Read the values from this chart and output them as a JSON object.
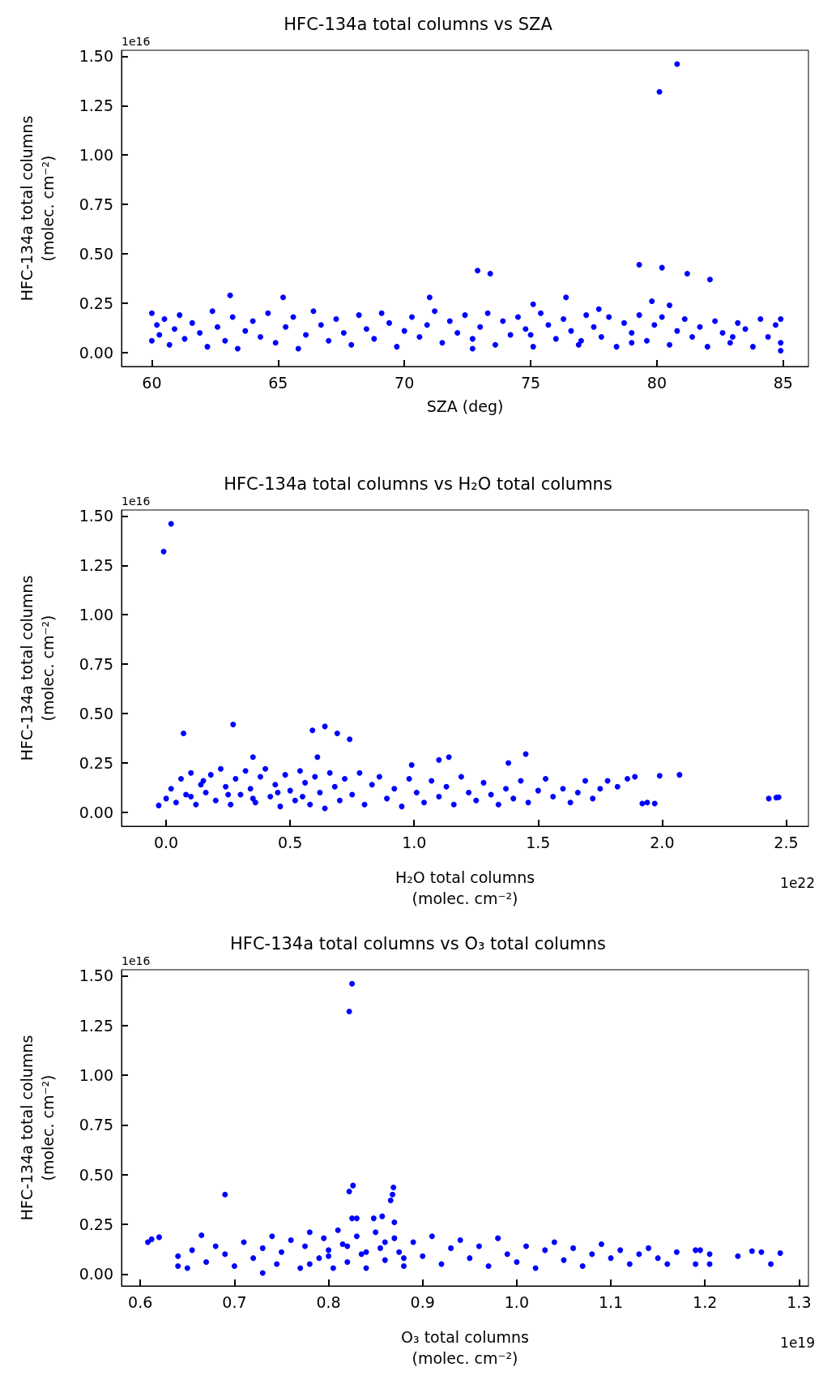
{
  "chart_data": [
    {
      "type": "scatter",
      "title": "HFC-134a total columns vs SZA",
      "xlabel": "SZA (deg)",
      "ylabel": "HFC-134a total columns\n(molec. cm⁻²)",
      "annotations": [
        "1e16"
      ],
      "marker": "circle",
      "grid": false,
      "xlim": [
        58.8,
        86.0
      ],
      "xticks": [
        60,
        65,
        70,
        75,
        80,
        85
      ],
      "ylim": [
        -0.07,
        1.53
      ],
      "yticks": [
        {
          "value": 0,
          "label": "0.00"
        },
        {
          "value": 0.25,
          "label": "0.25"
        },
        {
          "value": 0.5,
          "label": "0.50"
        },
        {
          "value": 0.75,
          "label": "0.75"
        },
        {
          "value": 1,
          "label": "1.00"
        },
        {
          "value": 1.25,
          "label": "1.25"
        },
        {
          "value": 1.5,
          "label": "1.50"
        }
      ],
      "series": [
        {
          "color": "#0000ff",
          "x": [
            80.8,
            80.1,
            72.9,
            73.4,
            79.3,
            80.2,
            81.2,
            82.1,
            63.1,
            65.2,
            71.0,
            76.4,
            75.1,
            79.8,
            80.5,
            77.7,
            84.9,
            72.7,
            60.0,
            60.0,
            60.2,
            60.3,
            60.5,
            60.7,
            60.9,
            61.1,
            61.3,
            61.6,
            61.9,
            62.2,
            62.4,
            62.6,
            62.9,
            63.2,
            63.4,
            63.7,
            64.0,
            64.3,
            64.6,
            64.9,
            65.3,
            65.6,
            65.8,
            66.1,
            66.4,
            66.7,
            67.0,
            67.3,
            67.6,
            67.9,
            68.2,
            68.5,
            68.8,
            69.1,
            69.4,
            69.7,
            70.0,
            70.3,
            70.6,
            70.9,
            71.2,
            71.5,
            71.8,
            72.1,
            72.4,
            72.7,
            73.0,
            73.3,
            73.6,
            73.9,
            74.2,
            74.5,
            74.8,
            75.1,
            75.4,
            75.7,
            76.0,
            76.3,
            76.6,
            76.9,
            77.2,
            77.5,
            77.8,
            78.1,
            78.4,
            78.7,
            79.0,
            79.3,
            79.6,
            79.9,
            80.2,
            80.5,
            80.8,
            81.1,
            81.4,
            81.7,
            82.0,
            82.3,
            82.6,
            82.9,
            83.2,
            83.5,
            83.8,
            84.1,
            84.4,
            84.7,
            84.9,
            84.9,
            83.0,
            77.0,
            75.0,
            79.0
          ],
          "values": [
            1.46,
            1.32,
            0.415,
            0.4,
            0.445,
            0.43,
            0.4,
            0.37,
            0.29,
            0.28,
            0.28,
            0.28,
            0.245,
            0.26,
            0.24,
            0.22,
            0.01,
            0.02,
            0.2,
            0.06,
            0.14,
            0.09,
            0.17,
            0.04,
            0.12,
            0.19,
            0.07,
            0.15,
            0.1,
            0.03,
            0.21,
            0.13,
            0.06,
            0.18,
            0.02,
            0.11,
            0.16,
            0.08,
            0.2,
            0.05,
            0.13,
            0.18,
            0.02,
            0.09,
            0.21,
            0.14,
            0.06,
            0.17,
            0.1,
            0.04,
            0.19,
            0.12,
            0.07,
            0.2,
            0.15,
            0.03,
            0.11,
            0.18,
            0.08,
            0.14,
            0.21,
            0.05,
            0.16,
            0.1,
            0.19,
            0.07,
            0.13,
            0.2,
            0.04,
            0.16,
            0.09,
            0.18,
            0.12,
            0.03,
            0.2,
            0.14,
            0.07,
            0.17,
            0.11,
            0.04,
            0.19,
            0.13,
            0.08,
            0.18,
            0.03,
            0.15,
            0.1,
            0.19,
            0.06,
            0.14,
            0.18,
            0.04,
            0.11,
            0.17,
            0.08,
            0.13,
            0.03,
            0.16,
            0.1,
            0.05,
            0.15,
            0.12,
            0.03,
            0.17,
            0.08,
            0.14,
            0.05,
            0.17,
            0.08,
            0.06,
            0.09,
            0.05
          ]
        }
      ]
    },
    {
      "type": "scatter",
      "title": "HFC-134a total columns vs H₂O total columns",
      "xlabel": "H₂O total columns\n(molec. cm⁻²)",
      "ylabel": "HFC-134a total columns\n(molec. cm⁻²)",
      "annotations": [
        "1e16",
        "1e22"
      ],
      "marker": "circle",
      "grid": false,
      "xlim": [
        -0.18,
        2.59
      ],
      "xticks": [
        {
          "value": 0,
          "label": "0.0"
        },
        0.5,
        {
          "value": 1,
          "label": "1.0"
        },
        1.5,
        {
          "value": 2,
          "label": "2.0"
        },
        2.5
      ],
      "ylim": [
        -0.07,
        1.53
      ],
      "yticks": [
        {
          "value": 0,
          "label": "0.00"
        },
        {
          "value": 0.25,
          "label": "0.25"
        },
        {
          "value": 0.5,
          "label": "0.50"
        },
        {
          "value": 0.75,
          "label": "0.75"
        },
        {
          "value": 1,
          "label": "1.00"
        },
        {
          "value": 1.25,
          "label": "1.25"
        },
        {
          "value": 1.5,
          "label": "1.50"
        }
      ],
      "series": [
        {
          "color": "#0000ff",
          "x": [
            -0.01,
            0.02,
            0.07,
            0.27,
            0.59,
            0.64,
            0.69,
            0.74,
            0.35,
            0.61,
            1.14,
            1.45,
            1.38,
            1.1,
            0.99,
            1.99,
            2.07,
            2.43,
            2.46,
            2.47,
            1.92,
            1.94,
            1.97,
            -0.03,
            0.0,
            0.02,
            0.04,
            0.06,
            0.08,
            0.1,
            0.12,
            0.14,
            0.16,
            0.18,
            0.2,
            0.22,
            0.24,
            0.26,
            0.28,
            0.3,
            0.32,
            0.34,
            0.36,
            0.38,
            0.4,
            0.42,
            0.44,
            0.46,
            0.48,
            0.5,
            0.52,
            0.54,
            0.56,
            0.58,
            0.6,
            0.62,
            0.64,
            0.66,
            0.68,
            0.7,
            0.72,
            0.75,
            0.78,
            0.8,
            0.83,
            0.86,
            0.89,
            0.92,
            0.95,
            0.98,
            1.01,
            1.04,
            1.07,
            1.1,
            1.13,
            1.16,
            1.19,
            1.22,
            1.25,
            1.28,
            1.31,
            1.34,
            1.37,
            1.4,
            1.43,
            1.46,
            1.5,
            1.53,
            1.56,
            1.6,
            1.63,
            1.66,
            1.69,
            1.72,
            1.75,
            1.78,
            1.82,
            1.86,
            1.89,
            0.1,
            0.25,
            0.45,
            0.55,
            0.35,
            0.15
          ],
          "values": [
            1.32,
            1.46,
            0.4,
            0.445,
            0.415,
            0.435,
            0.4,
            0.37,
            0.28,
            0.28,
            0.28,
            0.295,
            0.25,
            0.265,
            0.24,
            0.185,
            0.19,
            0.07,
            0.075,
            0.077,
            0.045,
            0.05,
            0.045,
            0.035,
            0.07,
            0.12,
            0.05,
            0.17,
            0.09,
            0.2,
            0.04,
            0.14,
            0.1,
            0.19,
            0.06,
            0.22,
            0.13,
            0.04,
            0.17,
            0.09,
            0.21,
            0.12,
            0.05,
            0.18,
            0.22,
            0.08,
            0.14,
            0.03,
            0.19,
            0.11,
            0.06,
            0.21,
            0.15,
            0.04,
            0.18,
            0.1,
            0.02,
            0.2,
            0.13,
            0.06,
            0.17,
            0.09,
            0.2,
            0.04,
            0.14,
            0.18,
            0.07,
            0.12,
            0.03,
            0.17,
            0.1,
            0.05,
            0.16,
            0.08,
            0.13,
            0.04,
            0.18,
            0.1,
            0.06,
            0.15,
            0.09,
            0.04,
            0.12,
            0.07,
            0.16,
            0.05,
            0.11,
            0.17,
            0.08,
            0.12,
            0.05,
            0.1,
            0.16,
            0.07,
            0.12,
            0.16,
            0.13,
            0.17,
            0.18,
            0.08,
            0.09,
            0.1,
            0.08,
            0.07,
            0.16
          ]
        }
      ]
    },
    {
      "type": "scatter",
      "title": "HFC-134a total columns vs O₃ total columns",
      "xlabel": "O₃ total columns\n(molec. cm⁻²)",
      "ylabel": "HFC-134a total columns\n(molec. cm⁻²)",
      "annotations": [
        "1e16",
        "1e19"
      ],
      "marker": "circle",
      "grid": false,
      "xlim": [
        0.58,
        1.31
      ],
      "xticks": [
        0.6,
        0.7,
        0.8,
        0.9,
        {
          "value": 1,
          "label": "1.0"
        },
        1.1,
        1.2,
        1.3
      ],
      "ylim": [
        -0.06,
        1.53
      ],
      "yticks": [
        {
          "value": 0,
          "label": "0.00"
        },
        {
          "value": 0.25,
          "label": "0.25"
        },
        {
          "value": 0.5,
          "label": "0.50"
        },
        {
          "value": 0.75,
          "label": "0.75"
        },
        {
          "value": 1,
          "label": "1.00"
        },
        {
          "value": 1.25,
          "label": "1.25"
        },
        {
          "value": 1.5,
          "label": "1.50"
        }
      ],
      "series": [
        {
          "color": "#0000ff",
          "x": [
            0.825,
            0.822,
            0.69,
            0.822,
            0.826,
            0.868,
            0.869,
            0.866,
            0.857,
            0.848,
            0.825,
            0.83,
            0.87,
            0.608,
            0.62,
            0.612,
            1.28,
            1.27,
            1.25,
            1.26,
            1.235,
            1.205,
            1.205,
            1.19,
            1.195,
            1.19,
            0.73,
            0.665,
            0.64,
            0.65,
            0.64,
            0.655,
            0.67,
            0.68,
            0.69,
            0.7,
            0.71,
            0.72,
            0.73,
            0.74,
            0.745,
            0.75,
            0.76,
            0.77,
            0.775,
            0.78,
            0.79,
            0.795,
            0.8,
            0.805,
            0.81,
            0.815,
            0.82,
            0.83,
            0.835,
            0.84,
            0.85,
            0.855,
            0.86,
            0.87,
            0.875,
            0.88,
            0.89,
            0.9,
            0.91,
            0.92,
            0.93,
            0.94,
            0.95,
            0.96,
            0.97,
            0.98,
            0.99,
            1.0,
            1.01,
            1.02,
            1.03,
            1.04,
            1.05,
            1.06,
            1.07,
            1.08,
            1.09,
            1.1,
            1.11,
            1.12,
            1.13,
            1.14,
            1.15,
            1.16,
            1.17,
            0.8,
            0.82,
            0.84,
            0.78,
            0.88,
            0.86
          ],
          "values": [
            1.46,
            1.32,
            0.4,
            0.415,
            0.445,
            0.4,
            0.435,
            0.37,
            0.29,
            0.28,
            0.28,
            0.28,
            0.26,
            0.16,
            0.185,
            0.175,
            0.105,
            0.05,
            0.115,
            0.11,
            0.09,
            0.1,
            0.05,
            0.12,
            0.12,
            0.05,
            0.005,
            0.195,
            0.04,
            0.03,
            0.09,
            0.12,
            0.06,
            0.14,
            0.1,
            0.04,
            0.16,
            0.08,
            0.13,
            0.19,
            0.05,
            0.11,
            0.17,
            0.03,
            0.14,
            0.21,
            0.08,
            0.18,
            0.12,
            0.03,
            0.22,
            0.15,
            0.06,
            0.19,
            0.1,
            0.03,
            0.21,
            0.13,
            0.07,
            0.18,
            0.11,
            0.04,
            0.16,
            0.09,
            0.19,
            0.05,
            0.13,
            0.17,
            0.08,
            0.14,
            0.04,
            0.18,
            0.1,
            0.06,
            0.14,
            0.03,
            0.12,
            0.16,
            0.07,
            0.13,
            0.04,
            0.1,
            0.15,
            0.08,
            0.12,
            0.05,
            0.1,
            0.13,
            0.08,
            0.05,
            0.11,
            0.09,
            0.14,
            0.11,
            0.05,
            0.08,
            0.16
          ]
        }
      ]
    }
  ]
}
